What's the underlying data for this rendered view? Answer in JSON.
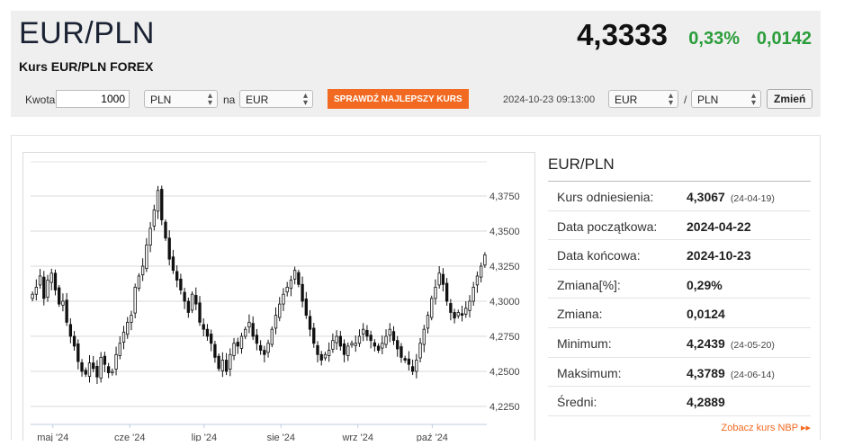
{
  "header": {
    "pair": "EUR/PLN",
    "subtitle": "Kurs EUR/PLN FOREX",
    "price": "4,3333",
    "change_pct": "0,33%",
    "change_abs": "0,0142",
    "up_color": "#2a9d3a"
  },
  "converter": {
    "amount_label": "Kwota",
    "amount_value": "1000",
    "from_currency": "PLN",
    "to_label": "na",
    "to_currency": "EUR",
    "best_rate_button": "SPRAWDŹ NAJLEPSZY KURS",
    "timestamp": "2024-10-23 09:13:00",
    "pair_left": "EUR",
    "pair_sep": "/",
    "pair_right": "PLN",
    "change_button": "Zmień",
    "accent": "#f26a21"
  },
  "stats": {
    "title": "EUR/PLN",
    "rows": [
      {
        "label": "Kurs odniesienia:",
        "value": "4,3067",
        "date": "(24-04-19)"
      },
      {
        "label": "Data początkowa:",
        "value": "2024-04-22",
        "date": ""
      },
      {
        "label": "Data końcowa:",
        "value": "2024-10-23",
        "date": ""
      },
      {
        "label": "Zmiana[%]:",
        "value": "0,29%",
        "date": ""
      },
      {
        "label": "Zmiana:",
        "value": "0,0124",
        "date": ""
      },
      {
        "label": "Minimum:",
        "value": "4,2439",
        "date": "(24-05-20)"
      },
      {
        "label": "Maksimum:",
        "value": "4,3789",
        "date": "(24-06-14)"
      },
      {
        "label": "Średni:",
        "value": "4,2889",
        "date": ""
      }
    ],
    "nbp_link": "Zobacz kurs NBP"
  },
  "chart_data": {
    "type": "candlestick",
    "ylim": [
      4.225,
      4.375
    ],
    "ytick_labels": [
      "4,2250",
      "4,2500",
      "4,2750",
      "4,3000",
      "4,3250",
      "4,3500",
      "4,3750"
    ],
    "ytick_values": [
      4.225,
      4.25,
      4.275,
      4.3,
      4.325,
      4.35,
      4.375
    ],
    "x_range": [
      "2024-04-22",
      "2024-10-23"
    ],
    "month_labels": [
      "maj '24",
      "cze '24",
      "lip '24",
      "sie '24",
      "wrz '24",
      "paź '24"
    ],
    "month_starts": [
      "2024-05-01",
      "2024-06-01",
      "2024-07-01",
      "2024-08-01",
      "2024-09-01",
      "2024-10-01"
    ],
    "closes": [
      4.305,
      4.31,
      4.318,
      4.302,
      4.315,
      4.32,
      4.308,
      4.298,
      4.3,
      4.285,
      4.275,
      4.268,
      4.257,
      4.25,
      4.248,
      4.256,
      4.252,
      4.246,
      4.26,
      4.255,
      4.249,
      4.25,
      4.262,
      4.27,
      4.278,
      4.285,
      4.29,
      4.31,
      4.318,
      4.325,
      4.34,
      4.352,
      4.365,
      4.379,
      4.358,
      4.345,
      4.33,
      4.322,
      4.315,
      4.308,
      4.3,
      4.292,
      4.305,
      4.298,
      4.285,
      4.28,
      4.275,
      4.27,
      4.26,
      4.252,
      4.258,
      4.25,
      4.262,
      4.27,
      4.268,
      4.275,
      4.28,
      4.285,
      4.275,
      4.27,
      4.265,
      4.262,
      4.27,
      4.28,
      4.29,
      4.298,
      4.305,
      4.31,
      4.315,
      4.322,
      4.312,
      4.3,
      4.29,
      4.28,
      4.27,
      4.262,
      4.258,
      4.262,
      4.265,
      4.272,
      4.275,
      4.268,
      4.262,
      4.268,
      4.27,
      4.27,
      4.275,
      4.28,
      4.275,
      4.272,
      4.268,
      4.265,
      4.27,
      4.275,
      4.28,
      4.272,
      4.266,
      4.26,
      4.258,
      4.255,
      4.25,
      4.258,
      4.27,
      4.28,
      4.29,
      4.302,
      4.31,
      4.32,
      4.312,
      4.3,
      4.292,
      4.288,
      4.292,
      4.29,
      4.295,
      4.3,
      4.31,
      4.318,
      4.325,
      4.333
    ]
  }
}
